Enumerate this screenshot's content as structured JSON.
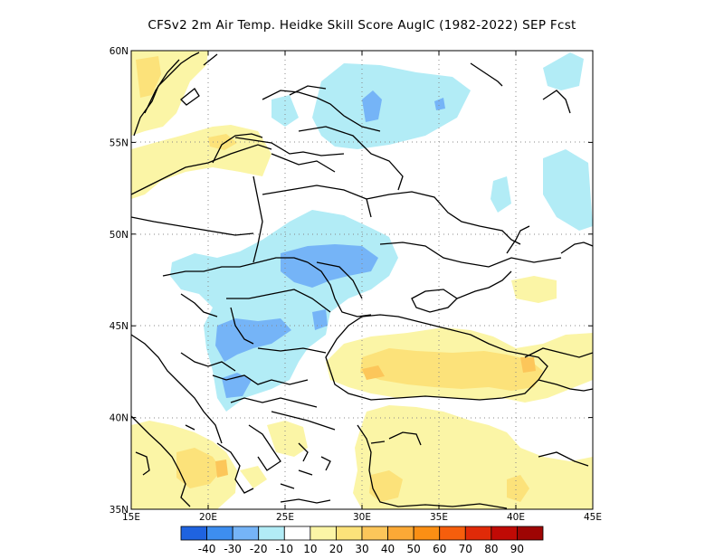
{
  "title": "CFSv2  2m Air Temp. Heidke Skill Score AugIC (1982-2022) SEP Fcst",
  "map": {
    "lon_range": [
      15,
      45
    ],
    "lat_range": [
      35,
      60
    ],
    "lon_ticks": [
      "15E",
      "20E",
      "25E",
      "30E",
      "35E",
      "40E",
      "45E"
    ],
    "lat_ticks": [
      "35N",
      "40N",
      "45N",
      "50N",
      "55N",
      "60N"
    ],
    "gridlines": "dotted",
    "region": "Eastern Europe / Black Sea"
  },
  "colorbar": {
    "colors": [
      "#1f63e0",
      "#3d8ef0",
      "#75b4f7",
      "#b2ecf6",
      "#ffffff",
      "#fbf5a6",
      "#fce27a",
      "#fcc65a",
      "#fba936",
      "#fb8f14",
      "#f65e0c",
      "#e02a08",
      "#c00a05",
      "#9e0503"
    ],
    "labels": [
      "-40",
      "-30",
      "-20",
      "-10",
      "10",
      "20",
      "30",
      "40",
      "50",
      "60",
      "70",
      "80",
      "90"
    ]
  },
  "colors": {
    "cyan": "#b2ecf6",
    "light_blue": "#75b4f7",
    "yellow": "#fbf5a6",
    "light_orange": "#fce27a",
    "orange": "#fcc65a",
    "land_border": "#000000"
  }
}
